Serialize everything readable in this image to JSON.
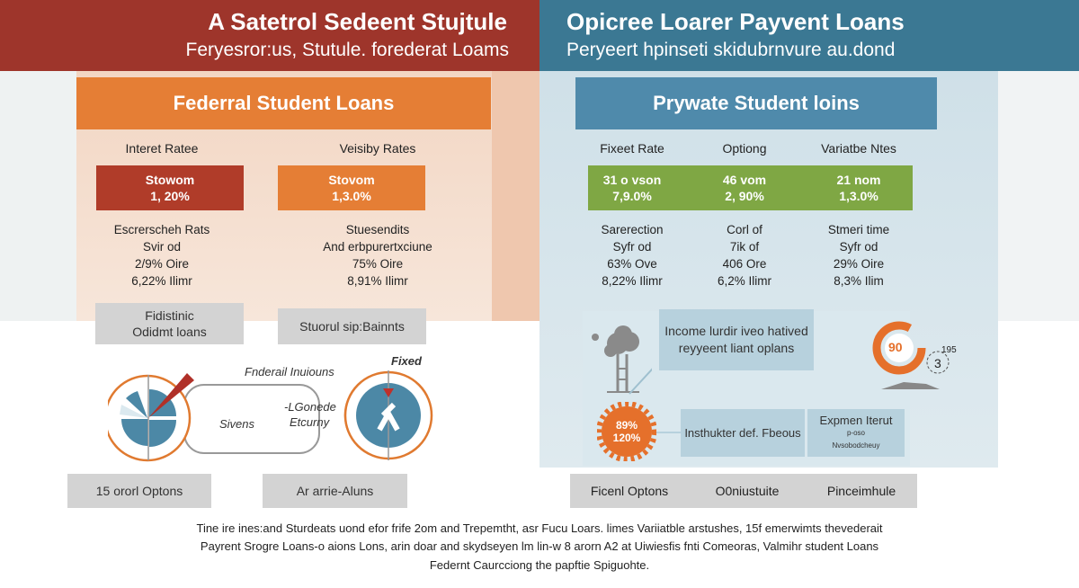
{
  "left_banner": {
    "title": "A Satetrol Sedeent Stujtule",
    "subtitle": "Feryesror:us, Stutule. forederat Loams"
  },
  "right_banner": {
    "title": "Opicree Loarer Payvent Loans",
    "subtitle": "Peryeert hpinseti skidubrnvure au.dond"
  },
  "federal": {
    "header": "Federral Student Loans",
    "columns": [
      {
        "label": "Interet Ratee",
        "rate_label": "Stowom",
        "rate": "1, 20%",
        "lines": [
          "Escrerscheh Rats",
          "Svir od",
          "2/9% Oire",
          "6,22% Ilimr"
        ]
      },
      {
        "label": "Veisiby Rates",
        "rate_label": "Stovom",
        "rate": "1,3.0%",
        "lines": [
          "Stuesendits",
          "And erbpurertxciune",
          "75% Oire",
          "8,91% Ilimr"
        ]
      }
    ],
    "grey_boxes": [
      [
        "Fidistinic",
        "Odidmt loans"
      ],
      [
        "Stuorul sip:Bainnts"
      ]
    ],
    "diagram": {
      "top_label": "Fnderail Inuiouns",
      "fixed_label": "Fixed",
      "left_label": "Sivens",
      "center_label_1": "-LGonede",
      "center_label_2": "Etcurny"
    },
    "bottom_boxes": [
      "15 ororl Optons",
      "Ar arrie-Aluns"
    ]
  },
  "private": {
    "header": "Prywate Student loins",
    "columns": [
      {
        "label": "Fixeet Rate",
        "rate_label": "31 o vson",
        "rate": "7,9.0%",
        "lines": [
          "Sarerection",
          "Syfr od",
          "63% Ove",
          "8,22% Ilimr"
        ]
      },
      {
        "label": "Optiong",
        "rate_label": "46 vom",
        "rate": "2, 90%",
        "lines": [
          "Corl of",
          "7ik of",
          "406 Ore",
          "6,2% Ilimr"
        ]
      },
      {
        "label": "Variatbe Ntes",
        "rate_label": "21 nom",
        "rate": "1,3.0%",
        "lines": [
          "Stmeri time",
          "Syfr od",
          "29% Oire",
          "8,3% Ilim"
        ]
      }
    ],
    "income_box": [
      "Income lurdir iveo hatived",
      "reyyeent liant oplans"
    ],
    "gear_values": [
      "89%",
      "120%"
    ],
    "cycle_values": [
      "195",
      "3",
      "90"
    ],
    "insthukter_box": "Insthukter def. Fbeous",
    "expmen_box": [
      "Expmen Iterut",
      "p-oso",
      "Nvsobodcheuy"
    ],
    "bottom_band": [
      "Ficenl Optons",
      "O0niustuite",
      "Pinceimhule"
    ]
  },
  "footer": [
    "Tine ire ines:and Sturdeats uond efor frife 2om and Trepemtht, asr Fucu Loars. limes Variiatble arstushes, 15f emerwimts thevederait",
    "Payrent Srogre Loans-o aions Lons, arin doar and skydseyen lm lin-w 8 arorn A2 at Uiwiesfis fnti Comeoras, Valmihr student Loans",
    "Federnt Caurcciong the papftie Spiguohte."
  ],
  "colors": {
    "red": "#9e352b",
    "teal": "#3b7893",
    "orange": "#e57e35",
    "blue": "#4f8aab",
    "green": "#7fa744",
    "grey": "#d3d3d3"
  }
}
